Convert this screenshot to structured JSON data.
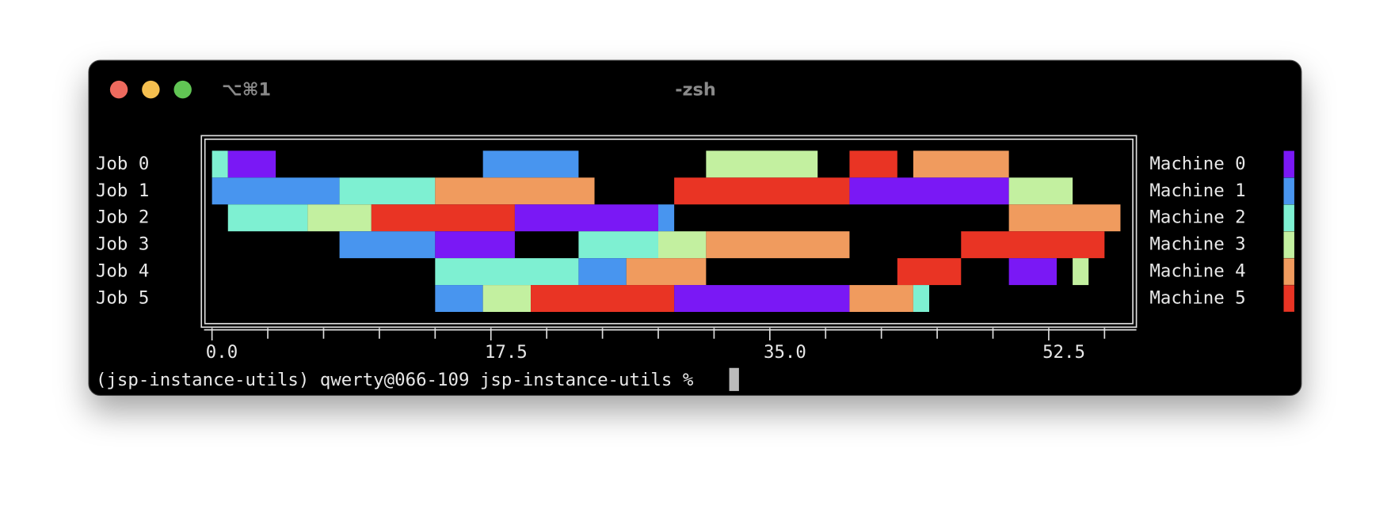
{
  "window": {
    "shortcut": "⌥⌘1",
    "title": "-zsh"
  },
  "prompt": "(jsp-instance-utils) qwerty@066-109 jsp-instance-utils %",
  "chart_data": {
    "type": "gantt",
    "categories": [
      "Job 0",
      "Job 1",
      "Job 2",
      "Job 3",
      "Job 4",
      "Job 5"
    ],
    "series": [
      {
        "name": "Machine 0",
        "color": "#7a18f5"
      },
      {
        "name": "Machine 1",
        "color": "#4895ef"
      },
      {
        "name": "Machine 2",
        "color": "#7ef0d2"
      },
      {
        "name": "Machine 3",
        "color": "#c3f0a0"
      },
      {
        "name": "Machine 4",
        "color": "#f09b5e"
      },
      {
        "name": "Machine 5",
        "color": "#e93424"
      }
    ],
    "tasks": [
      [
        [
          2,
          0,
          1
        ],
        [
          0,
          1,
          4
        ],
        [
          1,
          17,
          23
        ],
        [
          3,
          31,
          38
        ],
        [
          5,
          40,
          43
        ],
        [
          4,
          44,
          50
        ]
      ],
      [
        [
          1,
          0,
          8
        ],
        [
          2,
          8,
          14
        ],
        [
          4,
          14,
          24
        ],
        [
          5,
          29,
          40
        ],
        [
          0,
          40,
          50
        ],
        [
          3,
          50,
          54
        ]
      ],
      [
        [
          2,
          1,
          6
        ],
        [
          3,
          6,
          10
        ],
        [
          5,
          10,
          19
        ],
        [
          0,
          19,
          28
        ],
        [
          1,
          28,
          29
        ],
        [
          4,
          50,
          57
        ]
      ],
      [
        [
          1,
          8,
          14
        ],
        [
          0,
          14,
          19
        ],
        [
          2,
          23,
          28
        ],
        [
          3,
          28,
          31
        ],
        [
          4,
          31,
          40
        ],
        [
          5,
          47,
          56
        ]
      ],
      [
        [
          2,
          14,
          23
        ],
        [
          1,
          23,
          26
        ],
        [
          4,
          26,
          31
        ],
        [
          5,
          43,
          47
        ],
        [
          0,
          50,
          53
        ],
        [
          3,
          54,
          55
        ]
      ],
      [
        [
          1,
          14,
          17
        ],
        [
          3,
          17,
          20
        ],
        [
          5,
          20,
          29
        ],
        [
          0,
          29,
          40
        ],
        [
          4,
          40,
          44
        ],
        [
          2,
          44,
          45
        ]
      ]
    ],
    "xlim": [
      -0.5,
      58
    ],
    "xticks": [
      {
        "value": 0,
        "label": "0.0"
      },
      {
        "value": 17.5,
        "label": "17.5"
      },
      {
        "value": 35,
        "label": "35.0"
      },
      {
        "value": 52.5,
        "label": "52.5"
      }
    ],
    "xminor_ticks": [
      3.5,
      7,
      10.5,
      14,
      21,
      24.5,
      28,
      31.5,
      38.5,
      42,
      45.5,
      49,
      56
    ]
  }
}
